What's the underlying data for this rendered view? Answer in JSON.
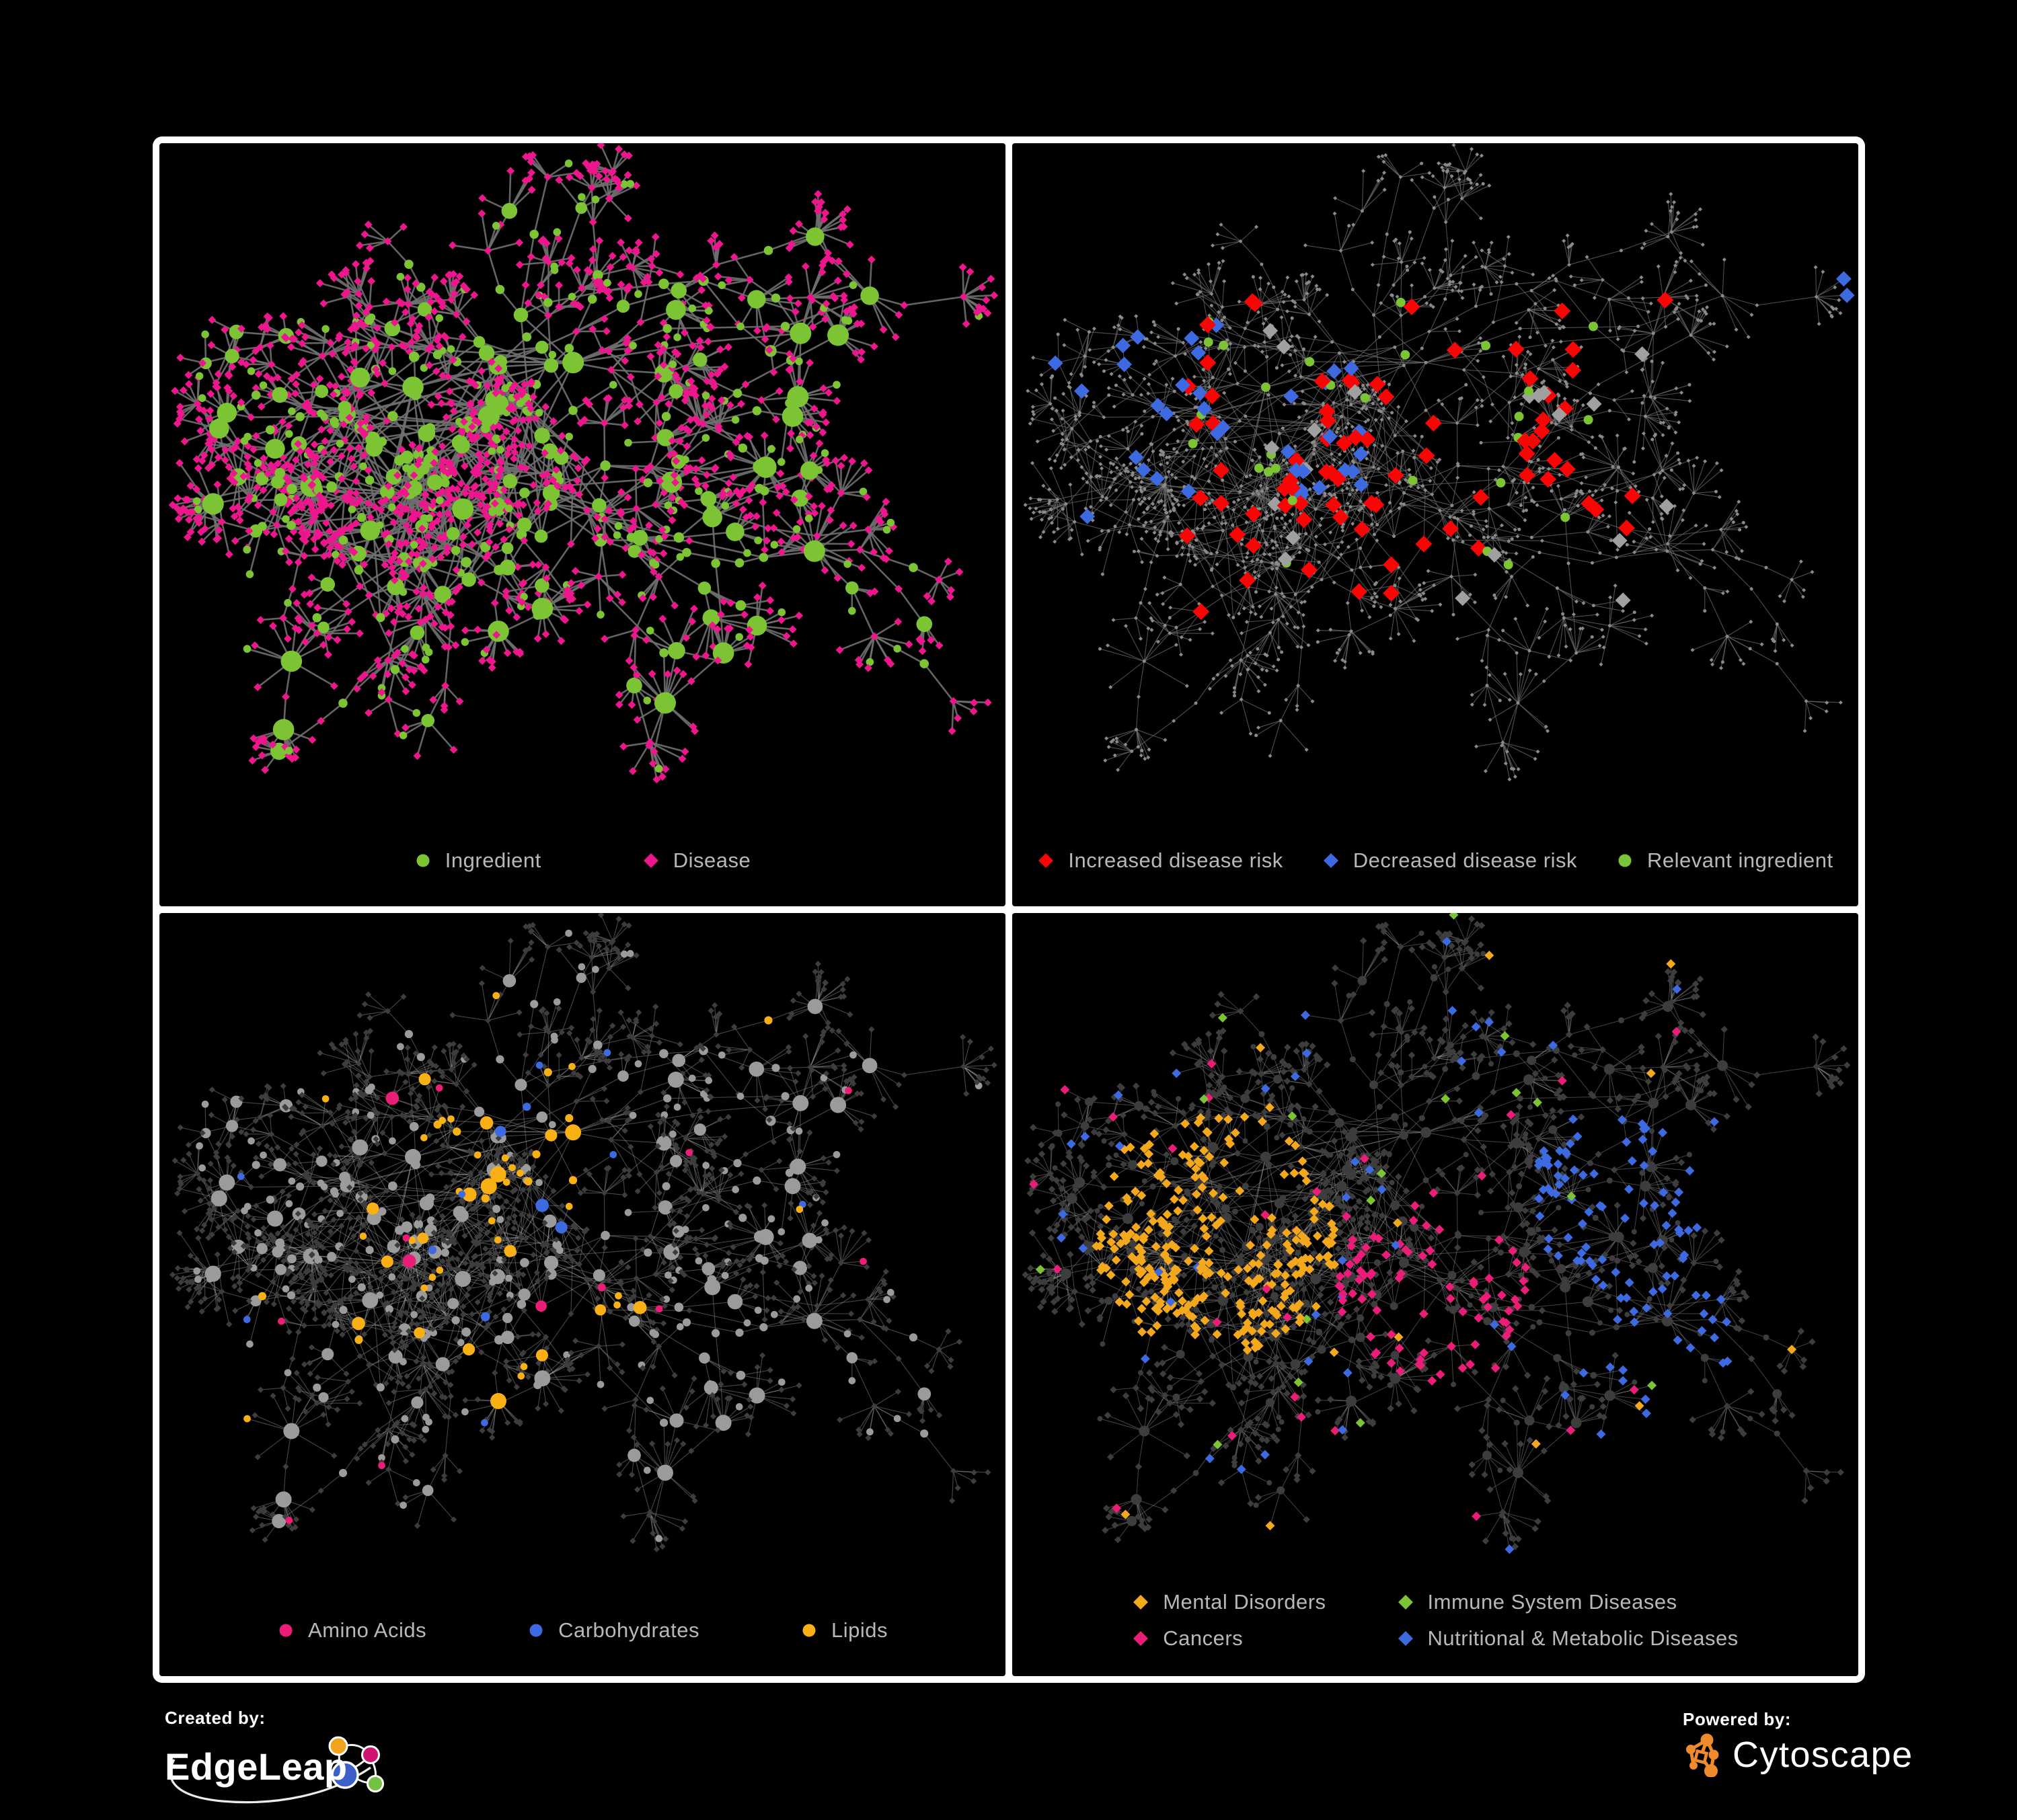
{
  "poster": {
    "background": "#000000",
    "panel_border_color": "#ffffff",
    "legend_text_color": "#b8b8b8"
  },
  "network_colors": {
    "ingredient_green": "#7cc433",
    "disease_pink": "#ed168d",
    "increased_risk_red": "#fa0505",
    "decreased_risk_blue": "#3e6ae1",
    "neutral_gray_diamond": "#a0a0a0",
    "amino_acids_pink": "#ec1d79",
    "carbohydrates_blue": "#3e6ae1",
    "lipids_orange": "#f8b014",
    "mental_disorders_orange": "#f3a81d",
    "immune_diseases_green": "#7cc433",
    "cancers_pink": "#ec1d79",
    "metabolic_diseases_blue": "#3e6ae1",
    "dim_node_gray": "#3d3d3d",
    "faint_node_gray": "#8a8a8a",
    "edge_gray_bold": "#6f6f6f",
    "edge_gray_thin": "#6e6e6e",
    "edge_gray_light": "#a9a9a9",
    "edge_gray_soft": "#9a9a9a",
    "cytoscape_orange": "#ef8b2c"
  },
  "panels": [
    {
      "name": "ingredient-disease-network",
      "legend_layout": "row",
      "legend": [
        {
          "label": "Ingredient",
          "shape": "circle",
          "color": "#7cc433"
        },
        {
          "label": "Disease",
          "shape": "diamond",
          "color": "#ed168d"
        }
      ]
    },
    {
      "name": "disease-risk-network",
      "legend_layout": "row-tight",
      "legend": [
        {
          "label": "Increased disease risk",
          "shape": "diamond",
          "color": "#fa0505"
        },
        {
          "label": "Decreased disease risk",
          "shape": "diamond",
          "color": "#3e6ae1"
        },
        {
          "label": "Relevant ingredient",
          "shape": "circle",
          "color": "#7cc433"
        }
      ]
    },
    {
      "name": "nutrient-class-network",
      "legend_layout": "row",
      "legend": [
        {
          "label": "Amino Acids",
          "shape": "circle",
          "color": "#ec1d79"
        },
        {
          "label": "Carbohydrates",
          "shape": "circle",
          "color": "#3e6ae1"
        },
        {
          "label": "Lipids",
          "shape": "circle",
          "color": "#f8b014"
        }
      ]
    },
    {
      "name": "disease-class-network",
      "legend_layout": "grid-2x2",
      "legend": [
        {
          "label": "Mental Disorders",
          "shape": "diamond",
          "color": "#f3a81d"
        },
        {
          "label": "Immune System Diseases",
          "shape": "diamond",
          "color": "#7cc433"
        },
        {
          "label": "Cancers",
          "shape": "diamond",
          "color": "#ec1d79"
        },
        {
          "label": "Nutritional & Metabolic Diseases",
          "shape": "diamond",
          "color": "#3e6ae1"
        }
      ]
    }
  ],
  "footer": {
    "created_by_label": "Created by:",
    "created_by_name": "EdgeLeap",
    "powered_by_label": "Powered by:",
    "powered_by_name": "Cytoscape"
  }
}
